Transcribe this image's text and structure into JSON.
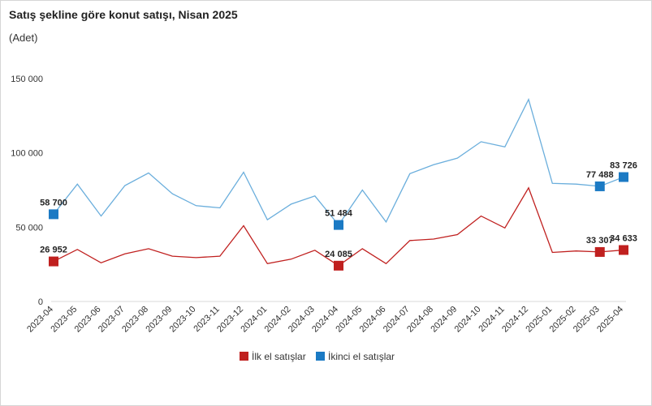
{
  "chart_data": {
    "type": "line",
    "title": "Satış şekline göre konut satışı, Nisan 2025",
    "subtitle": "(Adet)",
    "xlabel": "",
    "ylabel": "",
    "ylim": [
      0,
      150000
    ],
    "yticks": [
      0,
      50000,
      100000,
      150000
    ],
    "ytick_labels": [
      "0",
      "50 000",
      "100 000",
      "150 000"
    ],
    "grid": false,
    "legend_position": "bottom-center",
    "categories": [
      "2023-04",
      "2023-05",
      "2023-06",
      "2023-07",
      "2023-08",
      "2023-09",
      "2023-10",
      "2023-11",
      "2023-12",
      "2024-01",
      "2024-02",
      "2024-03",
      "2024-04",
      "2024-05",
      "2024-06",
      "2024-07",
      "2024-08",
      "2024-09",
      "2024-10",
      "2024-11",
      "2024-12",
      "2025-01",
      "2025-02",
      "2025-03",
      "2025-04"
    ],
    "series": [
      {
        "name": "İlk el satışlar",
        "color": "#c0201f",
        "values": [
          26952,
          35000,
          26000,
          32000,
          35500,
          30500,
          29500,
          30500,
          51000,
          25500,
          28500,
          34500,
          24085,
          35500,
          25500,
          41000,
          42000,
          45000,
          57500,
          49500,
          76500,
          33000,
          34000,
          33307,
          34633
        ],
        "markers": [
          {
            "index": 0,
            "label": "26 952"
          },
          {
            "index": 12,
            "label": "24 085"
          },
          {
            "index": 23,
            "label": "33 307"
          },
          {
            "index": 24,
            "label": "34 633"
          }
        ]
      },
      {
        "name": "İkinci el satışlar",
        "color": "#1b7ac4",
        "line_color": "#6aaedc",
        "values": [
          58700,
          79000,
          57500,
          78000,
          86500,
          72500,
          64500,
          63000,
          87000,
          55000,
          65500,
          71000,
          51484,
          75000,
          53500,
          86000,
          92000,
          96500,
          107500,
          104000,
          136000,
          79500,
          79000,
          77488,
          83726
        ],
        "markers": [
          {
            "index": 0,
            "label": "58 700"
          },
          {
            "index": 12,
            "label": "51 484"
          },
          {
            "index": 23,
            "label": "77 488"
          },
          {
            "index": 24,
            "label": "83 726"
          }
        ]
      }
    ]
  }
}
